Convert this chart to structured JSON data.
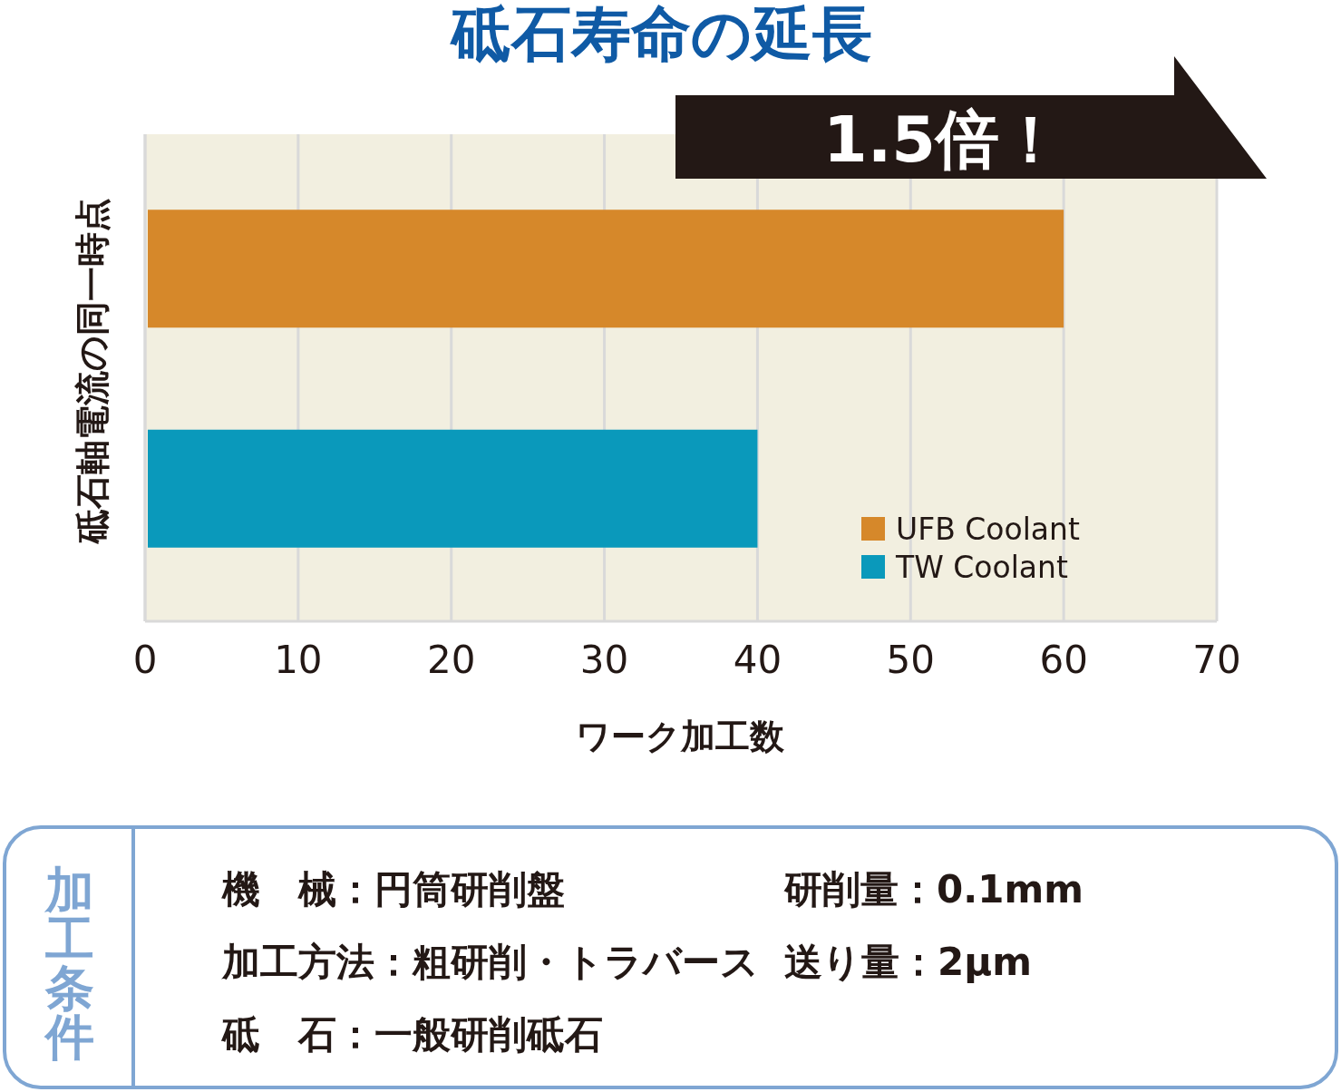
{
  "chart_data": {
    "type": "bar",
    "orientation": "horizontal",
    "title": "砥石寿命の延長",
    "xlabel": "ワーク加工数",
    "ylabel": "砥石軸電流の同一時点",
    "categories": [
      null,
      null
    ],
    "series": [
      {
        "name": "UFB Coolant",
        "color": "#d6882a",
        "values": [
          60,
          null
        ]
      },
      {
        "name": "TW Coolant",
        "color": "#0a99bb",
        "values": [
          null,
          40
        ]
      }
    ],
    "xlim": [
      0,
      70
    ],
    "xticks": [
      0,
      10,
      20,
      30,
      40,
      50,
      60,
      70
    ],
    "grid": "x",
    "legend": "bottom right",
    "annotations": [
      "1.5倍！",
      "加工条件",
      "機　械：円筒研削盤",
      "研削量：0.1mm",
      "加工方法：粗研削・トラバース",
      "送り量：2μm",
      "砥　石：一般研削砥石"
    ]
  }
}
